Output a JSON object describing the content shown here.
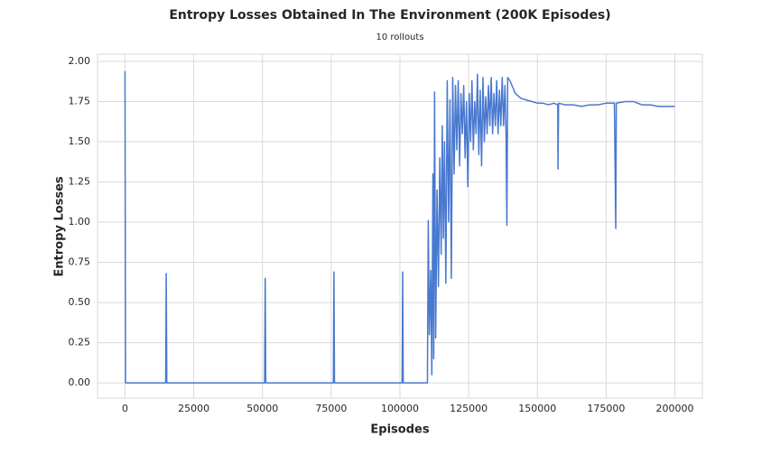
{
  "chart_data": {
    "type": "line",
    "title": "Entropy Losses Obtained In The Environment (200K Episodes)",
    "subtitle": "10 rollouts",
    "x_label": "Episodes",
    "y_label": "Entropy Losses",
    "grid": true,
    "xlim": [
      -10000,
      210000
    ],
    "ylim": [
      -0.095,
      2.045
    ],
    "xticks": [
      0,
      25000,
      50000,
      75000,
      100000,
      125000,
      150000,
      175000,
      200000
    ],
    "yticks": [
      {
        "value": 0,
        "label": "0.00"
      },
      {
        "value": 0.25,
        "label": "0.25"
      },
      {
        "value": 0.5,
        "label": "0.50"
      },
      {
        "value": 0.75,
        "label": "0.75"
      },
      {
        "value": 1,
        "label": "1.00"
      },
      {
        "value": 1.25,
        "label": "1.25"
      },
      {
        "value": 1.5,
        "label": "1.50"
      },
      {
        "value": 1.75,
        "label": "1.75"
      },
      {
        "value": 2,
        "label": "2.00"
      }
    ],
    "x": [
      0,
      200,
      14800,
      15000,
      15200,
      50800,
      51000,
      51200,
      75800,
      76000,
      76200,
      100800,
      101000,
      101200,
      110000,
      110300,
      110700,
      111200,
      111600,
      112000,
      112300,
      112600,
      113000,
      113500,
      114000,
      114500,
      115000,
      115400,
      115800,
      116200,
      116700,
      117200,
      117700,
      118200,
      118700,
      119200,
      119700,
      120200,
      120700,
      121200,
      121700,
      122200,
      122700,
      123200,
      123700,
      124200,
      124700,
      125200,
      125700,
      126200,
      126700,
      127200,
      127700,
      128200,
      128700,
      129200,
      129700,
      130200,
      130700,
      131200,
      131700,
      132200,
      132700,
      133200,
      133700,
      134200,
      134700,
      135200,
      135700,
      136200,
      136700,
      137200,
      137700,
      138200,
      138600,
      138900,
      139200,
      140000,
      142000,
      144000,
      146000,
      148000,
      150000,
      152000,
      154000,
      156000,
      157400,
      157500,
      157700,
      160000,
      163000,
      166000,
      169000,
      172000,
      175000,
      178000,
      178500,
      178700,
      182000,
      185000,
      188000,
      191000,
      194000,
      197000,
      200000
    ],
    "series": [
      {
        "color": "#4878d0",
        "values": [
          1.94,
          0,
          0,
          0.68,
          0,
          0,
          0.65,
          0,
          0,
          0.69,
          0,
          0,
          0.69,
          0,
          0,
          1.01,
          0.3,
          0.7,
          0.05,
          1.3,
          0.15,
          1.81,
          0.28,
          1.2,
          0.6,
          1.4,
          0.8,
          1.6,
          0.9,
          1.5,
          0.62,
          1.88,
          1.0,
          1.76,
          0.65,
          1.9,
          1.3,
          1.85,
          1.45,
          1.88,
          1.35,
          1.8,
          1.55,
          1.85,
          1.4,
          1.75,
          1.22,
          1.8,
          1.5,
          1.88,
          1.45,
          1.75,
          1.55,
          1.92,
          1.42,
          1.82,
          1.35,
          1.9,
          1.5,
          1.78,
          1.55,
          1.85,
          1.6,
          1.9,
          1.55,
          1.8,
          1.6,
          1.88,
          1.55,
          1.82,
          1.6,
          1.9,
          1.6,
          1.85,
          1.55,
          0.98,
          1.9,
          1.88,
          1.8,
          1.77,
          1.76,
          1.75,
          1.74,
          1.74,
          1.73,
          1.74,
          1.73,
          1.33,
          1.74,
          1.73,
          1.73,
          1.72,
          1.73,
          1.73,
          1.74,
          1.74,
          0.96,
          1.74,
          1.75,
          1.75,
          1.73,
          1.73,
          1.72,
          1.72,
          1.72
        ]
      }
    ]
  }
}
